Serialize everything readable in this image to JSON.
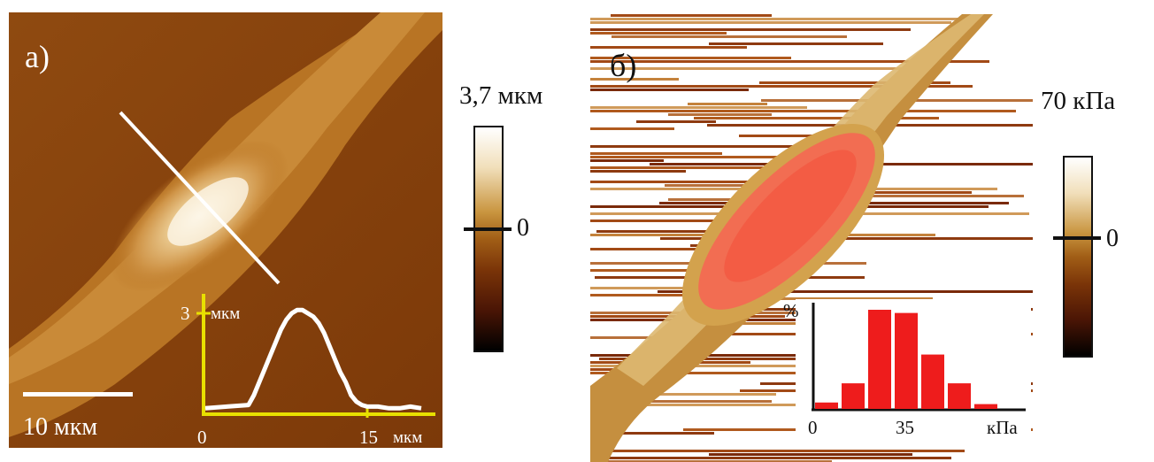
{
  "panel_a": {
    "label": "а)",
    "scale_bar_label": "10 мкм",
    "profile": {
      "y_tick": "3",
      "y_unit": "мкм",
      "x_ticks": [
        "0",
        "15"
      ],
      "x_unit": "мкм"
    },
    "colorbar": {
      "max_label": "3,7 мкм",
      "zero_label": "0"
    }
  },
  "panel_b": {
    "label": "б)",
    "colorbar": {
      "max_label": "70 кПа",
      "zero_label": "0"
    }
  },
  "chart_data": [
    {
      "type": "line",
      "ylabel": "мкм",
      "xlabel": "мкм",
      "x": [
        0,
        2,
        4,
        4.5,
        5,
        5.5,
        6,
        6.5,
        7,
        7.5,
        8,
        8.5,
        9,
        9.5,
        10,
        10.5,
        11,
        11.5,
        12,
        12.5,
        13,
        13.5,
        14,
        14.5,
        15,
        16,
        17,
        18,
        19,
        20
      ],
      "values": [
        0.1,
        0.15,
        0.2,
        0.5,
        0.9,
        1.3,
        1.7,
        2.1,
        2.5,
        2.8,
        3.0,
        3.1,
        3.1,
        3.0,
        2.9,
        2.7,
        2.4,
        2.0,
        1.6,
        1.2,
        0.9,
        0.5,
        0.3,
        0.2,
        0.15,
        0.15,
        0.1,
        0.1,
        0.15,
        0.1
      ],
      "x_ticks": [
        0,
        15
      ],
      "y_ticks": [
        3
      ]
    },
    {
      "type": "bar",
      "ylabel": "%",
      "xlabel": "кПа",
      "x_ticks": [
        0,
        35
      ],
      "categories": [
        5,
        15,
        25,
        35,
        45,
        55,
        65
      ],
      "values": [
        4,
        16,
        62,
        60,
        34,
        16,
        3
      ]
    }
  ]
}
